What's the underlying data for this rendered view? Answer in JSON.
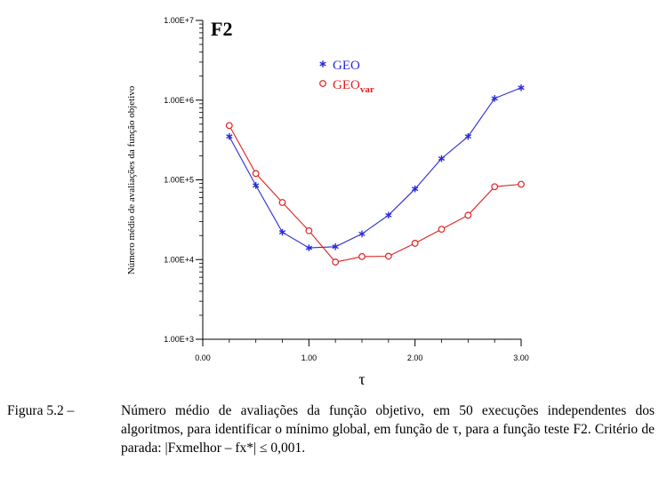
{
  "chart_data": {
    "type": "line",
    "title": "F2",
    "xlabel": "τ",
    "ylabel": "Número médio de avaliações da função objetivo",
    "xlim": [
      0.0,
      3.0
    ],
    "xticks": [
      0.0,
      1.0,
      2.0,
      3.0
    ],
    "xtick_labels": [
      "0.00",
      "1.00",
      "2.00",
      "3.00"
    ],
    "yscale": "log",
    "ylim": [
      1000,
      10000000
    ],
    "yticks": [
      1000,
      10000,
      100000,
      1000000,
      10000000
    ],
    "ytick_labels": [
      "1.00E+3",
      "1.00E+4",
      "1.00E+5",
      "1.00E+6",
      "1.00E+7"
    ],
    "grid": false,
    "legend_position": "top-center",
    "series": [
      {
        "name": "GEO",
        "marker": "asterisk",
        "color": "#2b2bd9",
        "x": [
          0.25,
          0.5,
          0.75,
          1.0,
          1.25,
          1.5,
          1.75,
          2.0,
          2.25,
          2.5,
          2.75,
          3.0
        ],
        "y": [
          350000,
          85000,
          22000,
          14000,
          14500,
          21000,
          36000,
          77000,
          185000,
          350000,
          1050000,
          1430000
        ]
      },
      {
        "name": "GEO",
        "name_subscript": "var",
        "marker": "circle",
        "color": "#e02020",
        "x": [
          0.25,
          0.5,
          0.75,
          1.0,
          1.25,
          1.5,
          1.75,
          2.0,
          2.25,
          2.5,
          2.75,
          3.0
        ],
        "y": [
          480000,
          120000,
          52000,
          23000,
          9300,
          10900,
          11000,
          16000,
          24000,
          36000,
          82000,
          88000
        ]
      }
    ]
  },
  "caption": {
    "label": "Figura 5.2 –",
    "text": "Número médio de avaliações da função objetivo, em 50 execuções independentes dos algoritmos, para identificar o mínimo global, em função de τ, para a função teste F2. Critério de parada: |Fxmelhor – fx*| ≤ 0,001."
  }
}
